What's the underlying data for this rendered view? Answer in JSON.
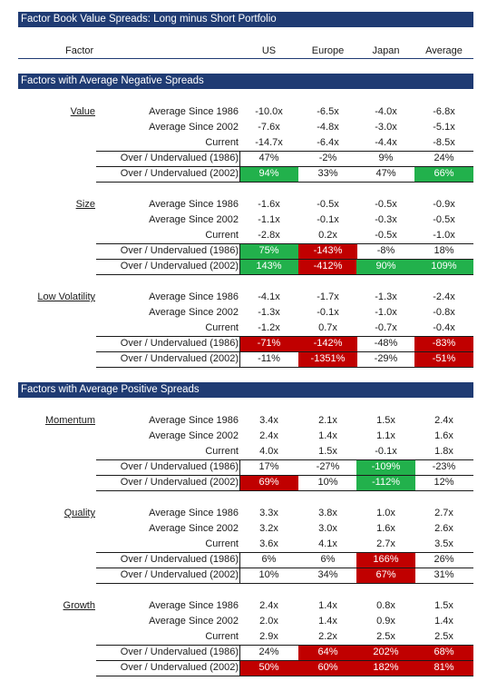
{
  "title": "Factor Book Value Spreads: Long minus Short Portfolio",
  "columns": {
    "factor": "Factor",
    "us": "US",
    "europe": "Europe",
    "japan": "Japan",
    "average": "Average"
  },
  "sections": [
    {
      "title": "Factors with Average Negative Spreads",
      "factors": [
        {
          "name": "Value",
          "rows": [
            {
              "label": "Average Since 1986",
              "values": [
                "-10.0x",
                "-6.5x",
                "-4.0x",
                "-6.8x"
              ],
              "hl": [
                "",
                "",
                "",
                ""
              ]
            },
            {
              "label": "Average Since 2002",
              "values": [
                "-7.6x",
                "-4.8x",
                "-3.0x",
                "-5.1x"
              ],
              "hl": [
                "",
                "",
                "",
                ""
              ]
            },
            {
              "label": "Current",
              "values": [
                "-14.7x",
                "-6.4x",
                "-4.4x",
                "-8.5x"
              ],
              "hl": [
                "",
                "",
                "",
                ""
              ]
            },
            {
              "label": "Over / Undervalued (1986)",
              "values": [
                "47%",
                "-2%",
                "9%",
                "24%"
              ],
              "hl": [
                "",
                "",
                "",
                ""
              ]
            },
            {
              "label": "Over / Undervalued (2002)",
              "values": [
                "94%",
                "33%",
                "47%",
                "66%"
              ],
              "hl": [
                "green",
                "",
                "",
                "green"
              ]
            }
          ]
        },
        {
          "name": "Size",
          "rows": [
            {
              "label": "Average Since 1986",
              "values": [
                "-1.6x",
                "-0.5x",
                "-0.5x",
                "-0.9x"
              ],
              "hl": [
                "",
                "",
                "",
                ""
              ]
            },
            {
              "label": "Average Since 2002",
              "values": [
                "-1.1x",
                "-0.1x",
                "-0.3x",
                "-0.5x"
              ],
              "hl": [
                "",
                "",
                "",
                ""
              ]
            },
            {
              "label": "Current",
              "values": [
                "-2.8x",
                "0.2x",
                "-0.5x",
                "-1.0x"
              ],
              "hl": [
                "",
                "",
                "",
                ""
              ]
            },
            {
              "label": "Over / Undervalued (1986)",
              "values": [
                "75%",
                "-143%",
                "-8%",
                "18%"
              ],
              "hl": [
                "green",
                "red",
                "",
                ""
              ]
            },
            {
              "label": "Over / Undervalued (2002)",
              "values": [
                "143%",
                "-412%",
                "90%",
                "109%"
              ],
              "hl": [
                "green",
                "red",
                "green",
                "green"
              ]
            }
          ]
        },
        {
          "name": "Low Volatility",
          "rows": [
            {
              "label": "Average Since 1986",
              "values": [
                "-4.1x",
                "-1.7x",
                "-1.3x",
                "-2.4x"
              ],
              "hl": [
                "",
                "",
                "",
                ""
              ]
            },
            {
              "label": "Average Since 2002",
              "values": [
                "-1.3x",
                "-0.1x",
                "-1.0x",
                "-0.8x"
              ],
              "hl": [
                "",
                "",
                "",
                ""
              ]
            },
            {
              "label": "Current",
              "values": [
                "-1.2x",
                "0.7x",
                "-0.7x",
                "-0.4x"
              ],
              "hl": [
                "",
                "",
                "",
                ""
              ]
            },
            {
              "label": "Over / Undervalued (1986)",
              "values": [
                "-71%",
                "-142%",
                "-48%",
                "-83%"
              ],
              "hl": [
                "red",
                "red",
                "",
                "red"
              ]
            },
            {
              "label": "Over / Undervalued (2002)",
              "values": [
                "-11%",
                "-1351%",
                "-29%",
                "-51%"
              ],
              "hl": [
                "",
                "red",
                "",
                "red"
              ]
            }
          ]
        }
      ]
    },
    {
      "title": "Factors with Average Positive Spreads",
      "factors": [
        {
          "name": "Momentum",
          "rows": [
            {
              "label": "Average Since 1986",
              "values": [
                "3.4x",
                "2.1x",
                "1.5x",
                "2.4x"
              ],
              "hl": [
                "",
                "",
                "",
                ""
              ]
            },
            {
              "label": "Average Since 2002",
              "values": [
                "2.4x",
                "1.4x",
                "1.1x",
                "1.6x"
              ],
              "hl": [
                "",
                "",
                "",
                ""
              ]
            },
            {
              "label": "Current",
              "values": [
                "4.0x",
                "1.5x",
                "-0.1x",
                "1.8x"
              ],
              "hl": [
                "",
                "",
                "",
                ""
              ]
            },
            {
              "label": "Over / Undervalued (1986)",
              "values": [
                "17%",
                "-27%",
                "-109%",
                "-23%"
              ],
              "hl": [
                "",
                "",
                "green",
                ""
              ]
            },
            {
              "label": "Over / Undervalued (2002)",
              "values": [
                "69%",
                "10%",
                "-112%",
                "12%"
              ],
              "hl": [
                "red",
                "",
                "green",
                ""
              ]
            }
          ]
        },
        {
          "name": "Quality",
          "rows": [
            {
              "label": "Average Since 1986",
              "values": [
                "3.3x",
                "3.8x",
                "1.0x",
                "2.7x"
              ],
              "hl": [
                "",
                "",
                "",
                ""
              ]
            },
            {
              "label": "Average Since 2002",
              "values": [
                "3.2x",
                "3.0x",
                "1.6x",
                "2.6x"
              ],
              "hl": [
                "",
                "",
                "",
                ""
              ]
            },
            {
              "label": "Current",
              "values": [
                "3.6x",
                "4.1x",
                "2.7x",
                "3.5x"
              ],
              "hl": [
                "",
                "",
                "",
                ""
              ]
            },
            {
              "label": "Over / Undervalued (1986)",
              "values": [
                "6%",
                "6%",
                "166%",
                "26%"
              ],
              "hl": [
                "",
                "",
                "red",
                ""
              ]
            },
            {
              "label": "Over / Undervalued (2002)",
              "values": [
                "10%",
                "34%",
                "67%",
                "31%"
              ],
              "hl": [
                "",
                "",
                "red",
                ""
              ]
            }
          ]
        },
        {
          "name": "Growth",
          "rows": [
            {
              "label": "Average Since 1986",
              "values": [
                "2.4x",
                "1.4x",
                "0.8x",
                "1.5x"
              ],
              "hl": [
                "",
                "",
                "",
                ""
              ]
            },
            {
              "label": "Average Since 2002",
              "values": [
                "2.0x",
                "1.4x",
                "0.9x",
                "1.4x"
              ],
              "hl": [
                "",
                "",
                "",
                ""
              ]
            },
            {
              "label": "Current",
              "values": [
                "2.9x",
                "2.2x",
                "2.5x",
                "2.5x"
              ],
              "hl": [
                "",
                "",
                "",
                ""
              ]
            },
            {
              "label": "Over / Undervalued (1986)",
              "values": [
                "24%",
                "64%",
                "202%",
                "68%"
              ],
              "hl": [
                "",
                "red",
                "red",
                "red"
              ]
            },
            {
              "label": "Over / Undervalued (2002)",
              "values": [
                "50%",
                "60%",
                "182%",
                "81%"
              ],
              "hl": [
                "red",
                "red",
                "red",
                "red"
              ]
            }
          ]
        }
      ]
    }
  ],
  "colors": {
    "header_bar": "#1f3b73",
    "positive_highlight": "#22b14c",
    "negative_highlight": "#c00000"
  }
}
